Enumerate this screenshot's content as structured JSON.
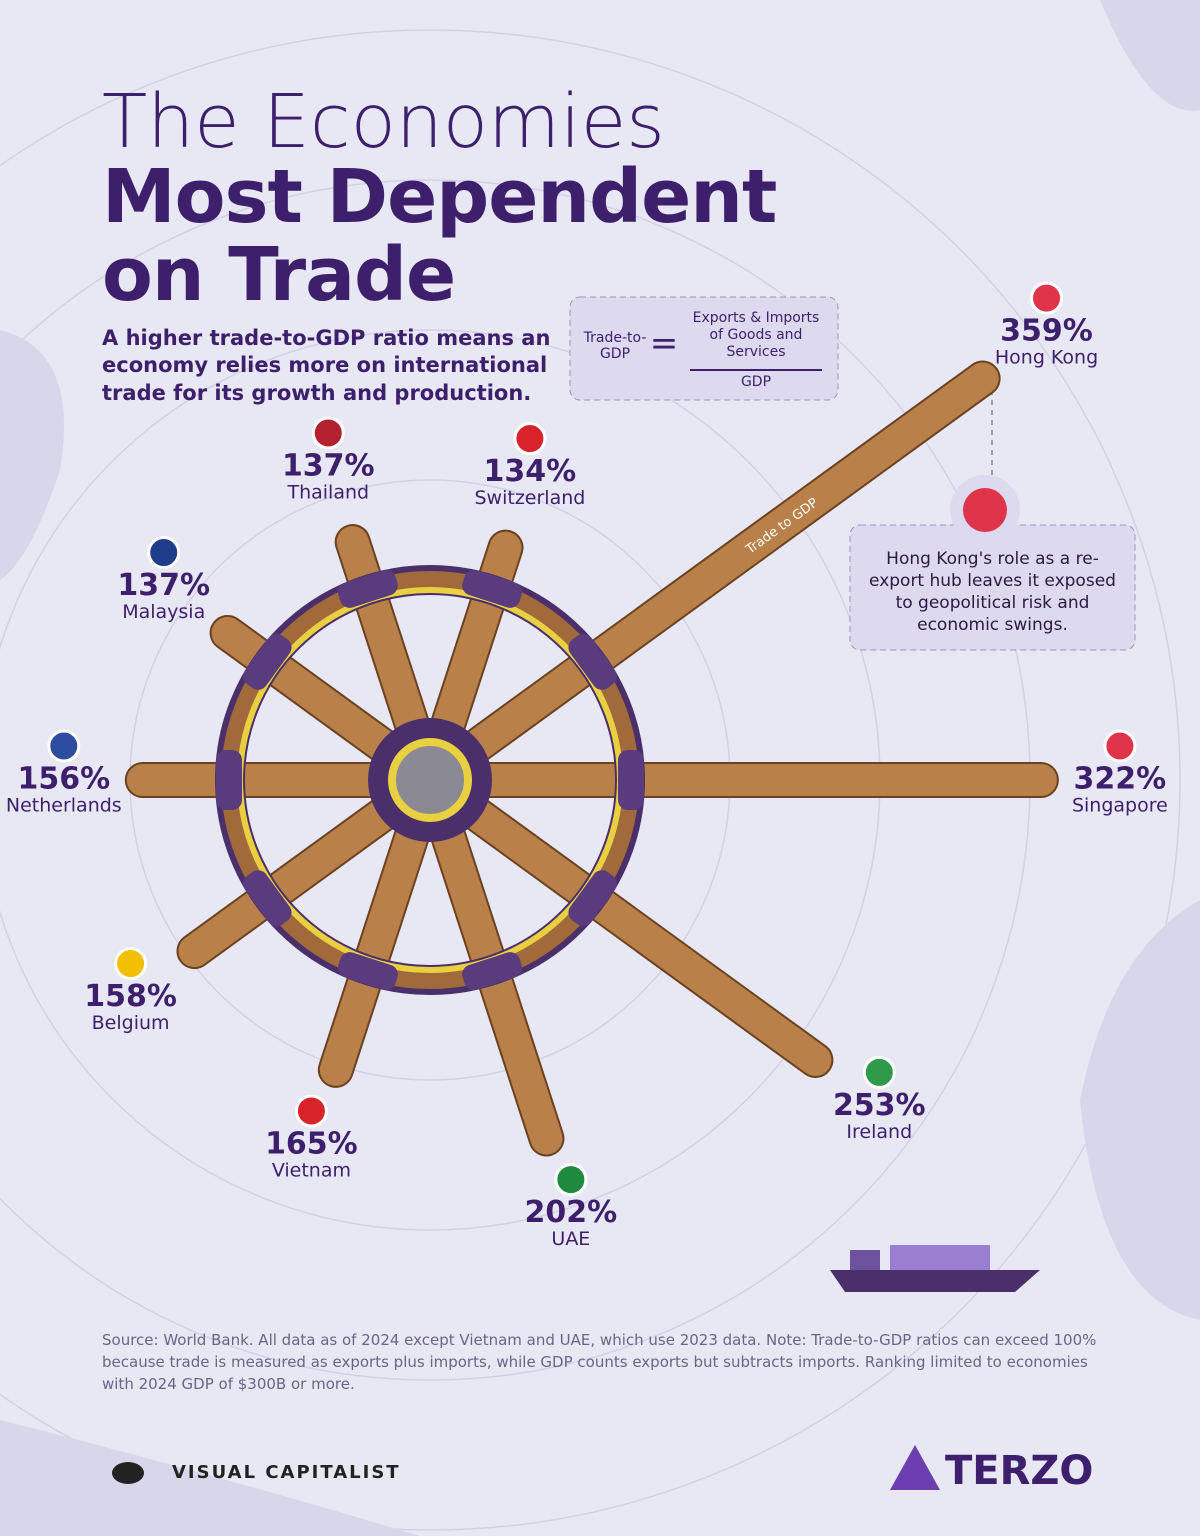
{
  "chart_data": {
    "type": "radial-bar",
    "title": [
      "The Economies",
      "Most Dependent",
      "on Trade"
    ],
    "subtitle": "A higher trade-to-GDP ratio means an economy relies more on international trade for its growth and production.",
    "bar_label": "Trade to GDP",
    "categories": [
      "Hong Kong",
      "Singapore",
      "Ireland",
      "UAE",
      "Vietnam",
      "Belgium",
      "Netherlands",
      "Malaysia",
      "Thailand",
      "Switzerland"
    ],
    "values": [
      359,
      322,
      253,
      202,
      165,
      158,
      156,
      137,
      137,
      134
    ],
    "value_labels": [
      "359%",
      "322%",
      "253%",
      "202%",
      "165%",
      "158%",
      "156%",
      "137%",
      "137%",
      "134%"
    ],
    "color": "#b98049"
  },
  "formula": {
    "left": "Trade-to-GDP",
    "numerator": "Exports & Imports of Goods and Services",
    "denominator": "GDP"
  },
  "annotation": "Hong Kong's role as a re-export hub leaves it exposed to geopolitical risk and economic swings.",
  "footer": {
    "source": "Source: World Bank. All data as of 2024 except Vietnam and UAE, which use 2023 data. Note: Trade-to-GDP ratios can exceed 100% because trade is measured as exports plus imports, while GDP counts exports but subtracts imports. Ranking limited to economies with 2024 GDP of $300B or more.",
    "brand_left": "VISUAL CAPITALIST",
    "brand_right": "TERZO"
  }
}
